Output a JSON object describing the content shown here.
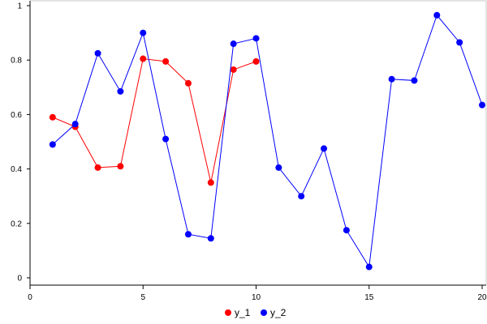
{
  "chart_data": {
    "type": "line",
    "title": "",
    "xlabel": "",
    "ylabel": "",
    "xlim": [
      0,
      20
    ],
    "ylim": [
      0,
      1
    ],
    "xticks": [
      0,
      5,
      10,
      15,
      20
    ],
    "yticks": [
      0,
      0.2,
      0.4,
      0.6,
      0.8,
      1
    ],
    "xtick_labels": [
      "0",
      "5",
      "10",
      "15",
      "20"
    ],
    "ytick_labels": [
      "0",
      "0.2",
      "0.4",
      "0.6",
      "0.8",
      "1"
    ],
    "grid": false,
    "legend_position": "bottom-center",
    "series": [
      {
        "name": "y_1",
        "color": "#ff0000",
        "x": [
          1,
          2,
          3,
          4,
          5,
          6,
          7,
          8,
          9,
          10
        ],
        "y": [
          0.59,
          0.555,
          0.405,
          0.41,
          0.805,
          0.795,
          0.715,
          0.35,
          0.765,
          0.795
        ]
      },
      {
        "name": "y_2",
        "color": "#0000ff",
        "x": [
          1,
          2,
          3,
          4,
          5,
          6,
          7,
          8,
          9,
          10,
          11,
          12,
          13,
          14,
          15,
          16,
          17,
          18,
          19,
          20
        ],
        "y": [
          0.49,
          0.565,
          0.825,
          0.685,
          0.9,
          0.51,
          0.16,
          0.145,
          0.86,
          0.88,
          0.405,
          0.3,
          0.475,
          0.175,
          0.04,
          0.73,
          0.725,
          0.965,
          0.865,
          0.635
        ]
      }
    ]
  }
}
